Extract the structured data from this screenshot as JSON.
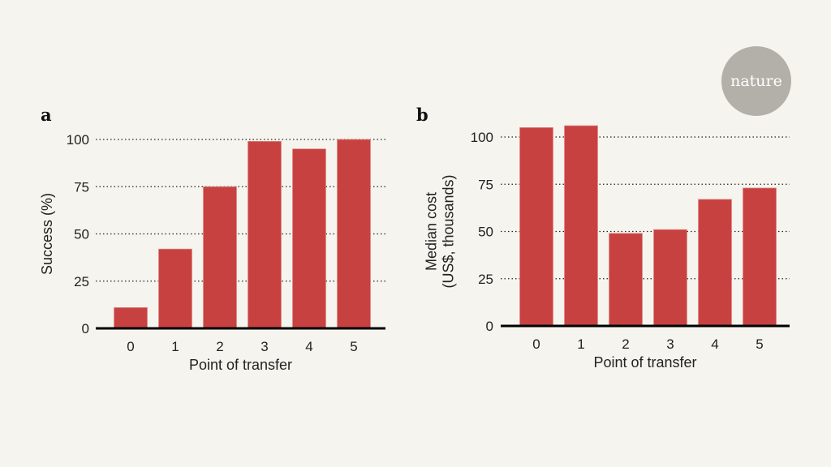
{
  "logo": {
    "text": "nature",
    "color": "#b2b0a8"
  },
  "colors": {
    "bar": "#c84141",
    "background": "#f5f4ee"
  },
  "chart_data": [
    {
      "panel": "a",
      "type": "bar",
      "categories": [
        "0",
        "1",
        "2",
        "3",
        "4",
        "5"
      ],
      "values": [
        11,
        42,
        75,
        99,
        95,
        100
      ],
      "xlabel": "Point of transfer",
      "ylabel": [
        "Success (%)"
      ],
      "ylim": [
        0,
        100
      ],
      "yticks": [
        "0",
        "25",
        "50",
        "75",
        "100"
      ],
      "grid": true
    },
    {
      "panel": "b",
      "type": "bar",
      "categories": [
        "0",
        "1",
        "2",
        "3",
        "4",
        "5"
      ],
      "values": [
        105,
        106,
        49,
        51,
        67,
        73
      ],
      "xlabel": "Point of transfer",
      "ylabel": [
        "Median cost",
        "(US$, thousands)"
      ],
      "ylim": [
        0,
        100
      ],
      "yticks": [
        "0",
        "25",
        "50",
        "75",
        "100"
      ],
      "grid": true
    }
  ]
}
